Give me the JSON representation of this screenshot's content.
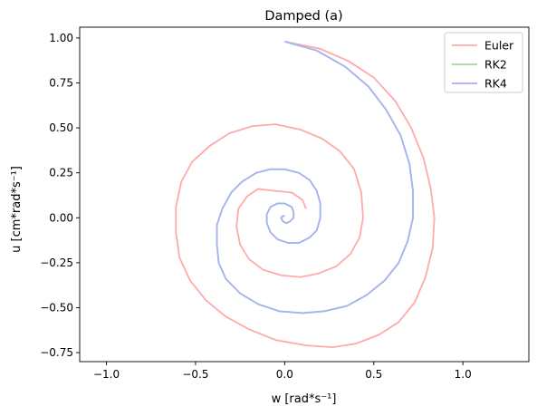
{
  "chart_data": {
    "type": "line",
    "title": "Damped (a)",
    "xlabel": "w   [rad*s⁻¹]",
    "ylabel": "u   [cm*rad*s⁻¹]",
    "xlim": [
      -1.15,
      1.37
    ],
    "ylim": [
      -0.8,
      1.06
    ],
    "xticks": [
      -1.0,
      -0.5,
      0.0,
      0.5,
      1.0
    ],
    "xtick_labels": [
      "−1.0",
      "−0.5",
      "0.0",
      "0.5",
      "1.0"
    ],
    "yticks": [
      -0.75,
      -0.5,
      -0.25,
      0.0,
      0.25,
      0.5,
      0.75,
      1.0
    ],
    "ytick_labels": [
      "−0.75",
      "−0.50",
      "−0.25",
      "0.00",
      "0.25",
      "0.50",
      "0.75",
      "1.00"
    ],
    "legend_position": "top-right",
    "grid": false,
    "series": [
      {
        "name": "Euler",
        "color": "#ffaaaa",
        "points": [
          [
            0.0,
            0.98
          ],
          [
            0.2,
            0.94
          ],
          [
            0.36,
            0.87
          ],
          [
            0.5,
            0.78
          ],
          [
            0.62,
            0.65
          ],
          [
            0.71,
            0.5
          ],
          [
            0.78,
            0.33
          ],
          [
            0.82,
            0.16
          ],
          [
            0.84,
            0.0
          ],
          [
            0.83,
            -0.17
          ],
          [
            0.79,
            -0.33
          ],
          [
            0.73,
            -0.47
          ],
          [
            0.64,
            -0.58
          ],
          [
            0.53,
            -0.65
          ],
          [
            0.4,
            -0.7
          ],
          [
            0.27,
            -0.72
          ],
          [
            0.12,
            -0.71
          ],
          [
            -0.05,
            -0.68
          ],
          [
            -0.2,
            -0.62
          ],
          [
            -0.33,
            -0.55
          ],
          [
            -0.44,
            -0.46
          ],
          [
            -0.53,
            -0.35
          ],
          [
            -0.59,
            -0.22
          ],
          [
            -0.61,
            -0.08
          ],
          [
            -0.61,
            0.06
          ],
          [
            -0.58,
            0.2
          ],
          [
            -0.52,
            0.31
          ],
          [
            -0.42,
            0.4
          ],
          [
            -0.31,
            0.47
          ],
          [
            -0.18,
            0.51
          ],
          [
            -0.05,
            0.52
          ],
          [
            0.09,
            0.49
          ],
          [
            0.21,
            0.44
          ],
          [
            0.31,
            0.37
          ],
          [
            0.39,
            0.27
          ],
          [
            0.43,
            0.14
          ],
          [
            0.44,
            0.0
          ],
          [
            0.42,
            -0.11
          ],
          [
            0.37,
            -0.2
          ],
          [
            0.29,
            -0.27
          ],
          [
            0.19,
            -0.31
          ],
          [
            0.09,
            -0.33
          ],
          [
            -0.02,
            -0.32
          ],
          [
            -0.12,
            -0.29
          ],
          [
            -0.2,
            -0.23
          ],
          [
            -0.25,
            -0.15
          ],
          [
            -0.27,
            -0.05
          ],
          [
            -0.26,
            0.05
          ],
          [
            -0.21,
            0.12
          ],
          [
            -0.15,
            0.16
          ],
          [
            -0.06,
            0.15
          ],
          [
            0.04,
            0.14
          ],
          [
            0.1,
            0.1
          ],
          [
            0.12,
            0.05
          ]
        ]
      },
      {
        "name": "RK2",
        "color": "#99dd99",
        "points": [
          [
            0.0,
            0.98
          ],
          [
            0.18,
            0.93
          ],
          [
            0.34,
            0.84
          ],
          [
            0.47,
            0.73
          ],
          [
            0.57,
            0.6
          ],
          [
            0.65,
            0.46
          ],
          [
            0.7,
            0.3
          ],
          [
            0.72,
            0.15
          ],
          [
            0.72,
            0.0
          ],
          [
            0.69,
            -0.13
          ],
          [
            0.64,
            -0.25
          ],
          [
            0.56,
            -0.35
          ],
          [
            0.46,
            -0.43
          ],
          [
            0.35,
            -0.49
          ],
          [
            0.22,
            -0.52
          ],
          [
            0.1,
            -0.53
          ],
          [
            -0.03,
            -0.52
          ],
          [
            -0.15,
            -0.48
          ],
          [
            -0.25,
            -0.42
          ],
          [
            -0.33,
            -0.34
          ],
          [
            -0.37,
            -0.25
          ],
          [
            -0.38,
            -0.15
          ],
          [
            -0.38,
            -0.04
          ],
          [
            -0.35,
            0.05
          ],
          [
            -0.3,
            0.14
          ],
          [
            -0.24,
            0.2
          ],
          [
            -0.16,
            0.25
          ],
          [
            -0.08,
            0.27
          ],
          [
            0.0,
            0.27
          ],
          [
            0.08,
            0.25
          ],
          [
            0.14,
            0.21
          ],
          [
            0.18,
            0.15
          ],
          [
            0.2,
            0.08
          ],
          [
            0.2,
            0.0
          ],
          [
            0.18,
            -0.07
          ],
          [
            0.14,
            -0.11
          ],
          [
            0.08,
            -0.14
          ],
          [
            0.02,
            -0.14
          ],
          [
            -0.04,
            -0.12
          ],
          [
            -0.08,
            -0.08
          ],
          [
            -0.1,
            -0.03
          ],
          [
            -0.1,
            0.02
          ],
          [
            -0.08,
            0.06
          ],
          [
            -0.04,
            0.08
          ],
          [
            0.0,
            0.08
          ],
          [
            0.04,
            0.06
          ],
          [
            0.05,
            0.03
          ],
          [
            0.05,
            0.0
          ],
          [
            0.03,
            -0.02
          ],
          [
            0.01,
            -0.03
          ],
          [
            -0.01,
            -0.02
          ],
          [
            -0.02,
            0.0
          ],
          [
            -0.01,
            0.01
          ],
          [
            0.0,
            0.01
          ]
        ]
      },
      {
        "name": "RK4",
        "color": "#aaaaff",
        "points": [
          [
            0.0,
            0.98
          ],
          [
            0.18,
            0.93
          ],
          [
            0.34,
            0.84
          ],
          [
            0.47,
            0.73
          ],
          [
            0.57,
            0.6
          ],
          [
            0.65,
            0.46
          ],
          [
            0.7,
            0.3
          ],
          [
            0.72,
            0.15
          ],
          [
            0.72,
            0.0
          ],
          [
            0.69,
            -0.13
          ],
          [
            0.64,
            -0.25
          ],
          [
            0.56,
            -0.35
          ],
          [
            0.46,
            -0.43
          ],
          [
            0.35,
            -0.49
          ],
          [
            0.22,
            -0.52
          ],
          [
            0.1,
            -0.53
          ],
          [
            -0.03,
            -0.52
          ],
          [
            -0.15,
            -0.48
          ],
          [
            -0.25,
            -0.42
          ],
          [
            -0.33,
            -0.34
          ],
          [
            -0.37,
            -0.25
          ],
          [
            -0.38,
            -0.15
          ],
          [
            -0.38,
            -0.04
          ],
          [
            -0.35,
            0.05
          ],
          [
            -0.3,
            0.14
          ],
          [
            -0.24,
            0.2
          ],
          [
            -0.16,
            0.25
          ],
          [
            -0.08,
            0.27
          ],
          [
            0.0,
            0.27
          ],
          [
            0.08,
            0.25
          ],
          [
            0.14,
            0.21
          ],
          [
            0.18,
            0.15
          ],
          [
            0.2,
            0.08
          ],
          [
            0.2,
            0.0
          ],
          [
            0.18,
            -0.07
          ],
          [
            0.14,
            -0.11
          ],
          [
            0.08,
            -0.14
          ],
          [
            0.02,
            -0.14
          ],
          [
            -0.04,
            -0.12
          ],
          [
            -0.08,
            -0.08
          ],
          [
            -0.1,
            -0.03
          ],
          [
            -0.1,
            0.02
          ],
          [
            -0.08,
            0.06
          ],
          [
            -0.04,
            0.08
          ],
          [
            0.0,
            0.08
          ],
          [
            0.04,
            0.06
          ],
          [
            0.05,
            0.03
          ],
          [
            0.05,
            0.0
          ],
          [
            0.03,
            -0.02
          ],
          [
            0.01,
            -0.03
          ],
          [
            -0.01,
            -0.02
          ],
          [
            -0.02,
            0.0
          ],
          [
            -0.01,
            0.01
          ],
          [
            0.0,
            0.01
          ]
        ]
      }
    ]
  }
}
